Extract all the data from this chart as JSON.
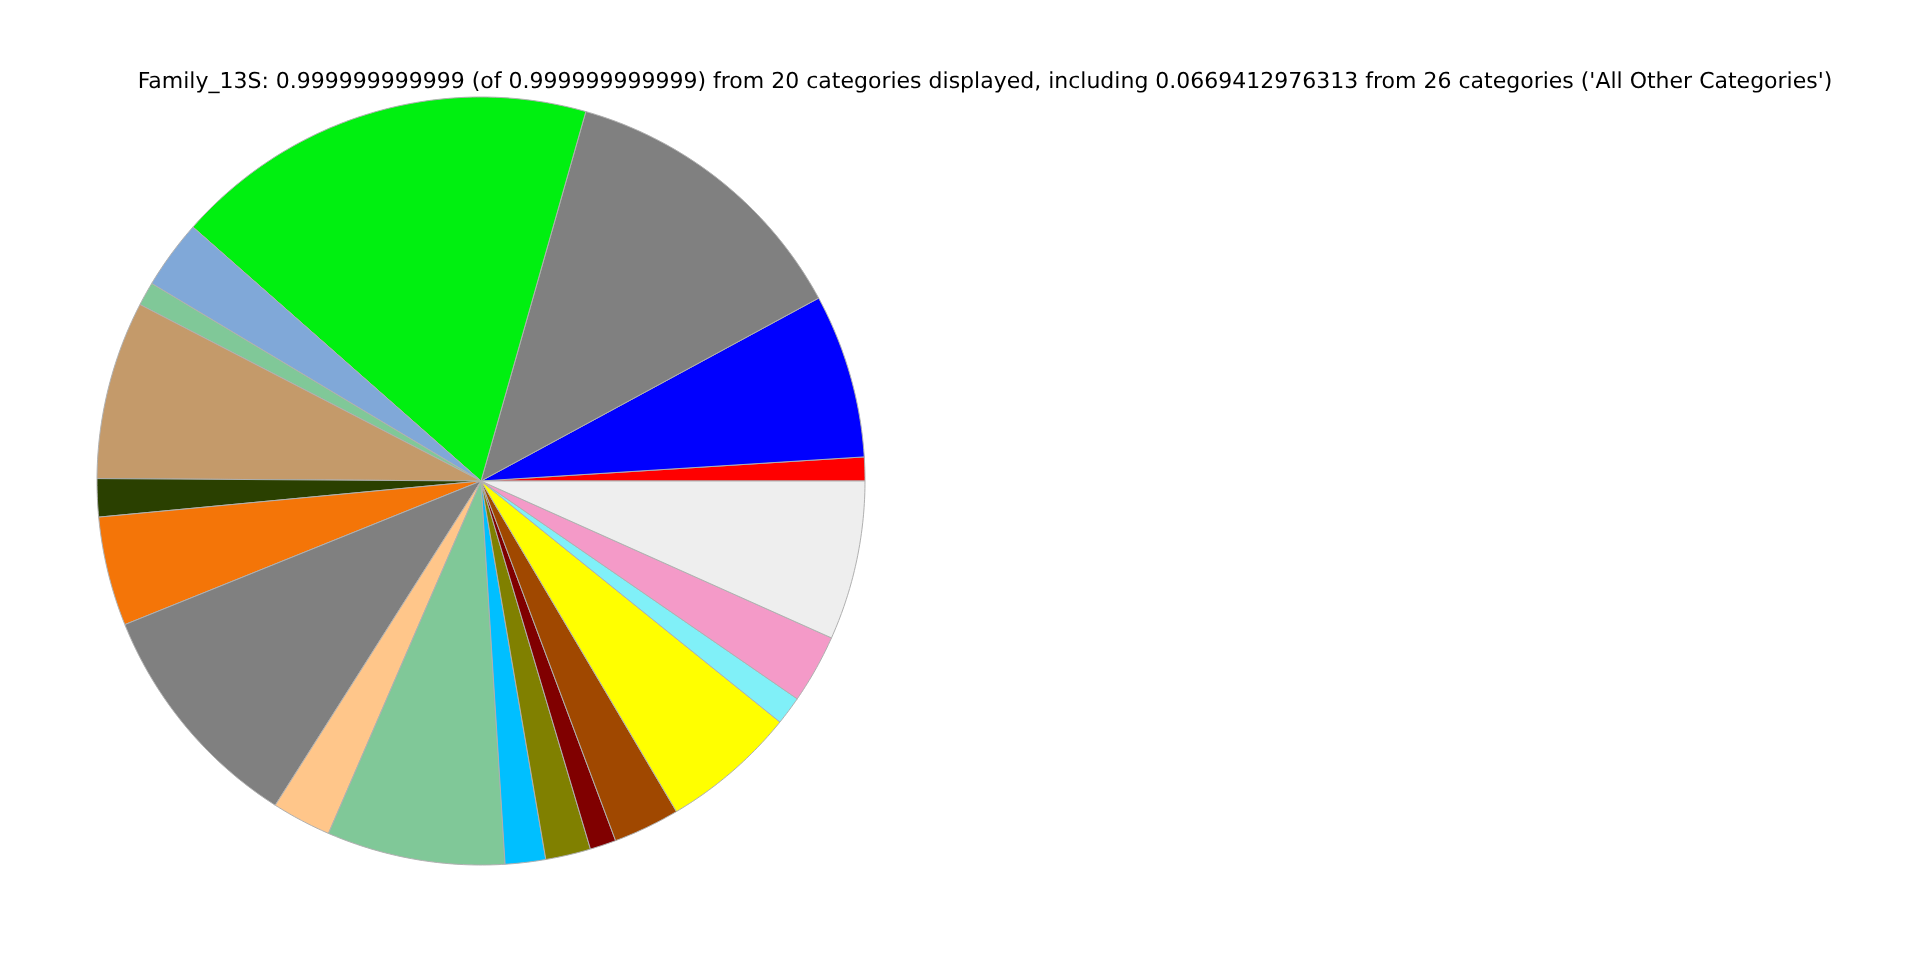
{
  "chart_data": {
    "type": "pie",
    "title": "Family_13S: 0.999999999999 (of 0.999999999999) from 20 categories displayed, including 0.0669412976313 from 26 categories ('All Other Categories')",
    "categories": [
      null,
      null,
      null,
      null,
      null,
      null,
      null,
      null,
      null,
      null,
      null,
      null,
      null,
      null,
      null,
      null,
      null,
      null,
      null,
      null
    ],
    "values": [
      1.0,
      6.9,
      12.7,
      17.9,
      2.9,
      1.0,
      7.5,
      1.6,
      4.6,
      9.9,
      2.5,
      7.5,
      1.7,
      1.9,
      1.1,
      2.8,
      5.7,
      1.2,
      2.9,
      6.7
    ],
    "colors": [
      "#ff0000",
      "#0000ff",
      "#808080",
      "#00f010",
      "#80a8d8",
      "#80c898",
      "#c49a6a",
      "#2a4000",
      "#f47508",
      "#808080",
      "#ffc68a",
      "#80c898",
      "#00bfff",
      "#808000",
      "#800000",
      "#a04800",
      "#ffff00",
      "#80f0f8",
      "#f49ac8",
      "#eeeeee"
    ]
  }
}
